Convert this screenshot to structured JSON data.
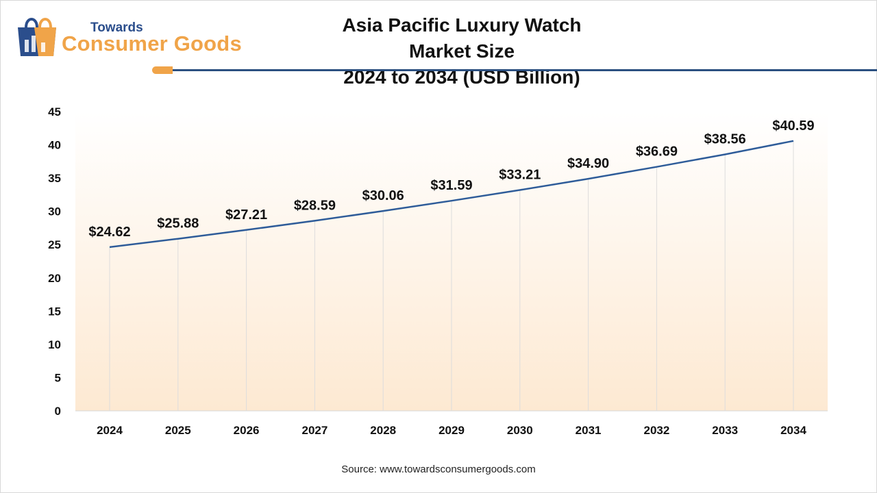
{
  "header": {
    "logo_small": "Towards",
    "logo_big": "Consumer Goods",
    "title_line1": "Asia Pacific Luxury Watch Market Size",
    "title_line2": "2024 to 2034 (USD Billion)"
  },
  "source": "Source: www.towardsconsumergoods.com",
  "colors": {
    "line": "#2e5c99",
    "accent": "#f0a449",
    "brand_blue": "#2b4e8c",
    "gradient_top": "#ffffff",
    "gradient_bottom": "#fde9d2"
  },
  "chart_data": {
    "type": "line",
    "categories": [
      "2024",
      "2025",
      "2026",
      "2027",
      "2028",
      "2029",
      "2030",
      "2031",
      "2032",
      "2033",
      "2034"
    ],
    "series": [
      {
        "values": [
          24.62,
          25.88,
          27.21,
          28.59,
          30.06,
          31.59,
          33.21,
          34.9,
          36.69,
          38.56,
          40.59
        ],
        "labels": [
          "$24.62",
          "$25.88",
          "$27.21",
          "$28.59",
          "$30.06",
          "$31.59",
          "$33.21",
          "$34.90",
          "$36.69",
          "$38.56",
          "$40.59"
        ]
      }
    ],
    "yticks": [
      0,
      5,
      10,
      15,
      20,
      25,
      30,
      35,
      40,
      45
    ],
    "ylim": [
      0,
      45
    ],
    "grid": "vertical",
    "title": "Asia Pacific Luxury Watch Market Size 2024 to 2034 (USD Billion)",
    "xlabel": "",
    "ylabel": ""
  }
}
